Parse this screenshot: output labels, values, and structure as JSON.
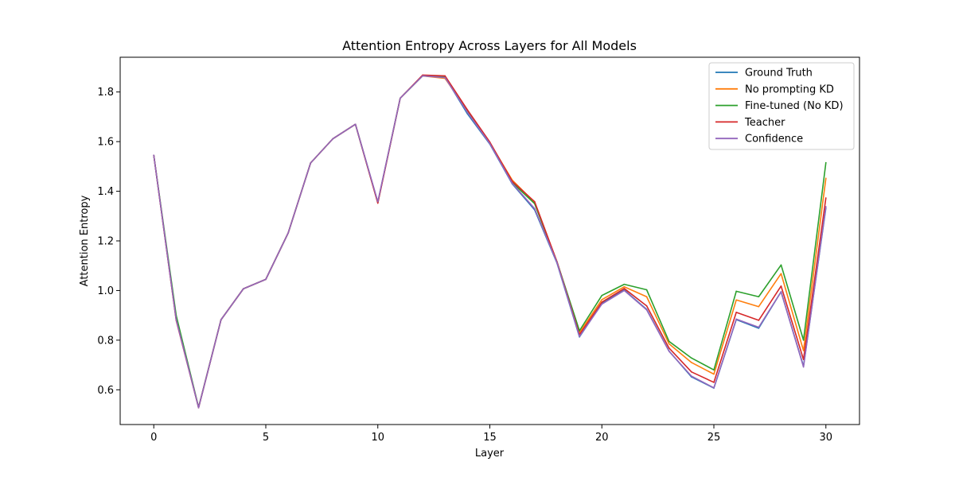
{
  "chart_data": {
    "type": "line",
    "title": "Attention Entropy Across Layers for All Models",
    "xlabel": "Layer",
    "ylabel": "Attention Entropy",
    "xlim": [
      -1.5,
      31.5
    ],
    "ylim": [
      0.46,
      1.94
    ],
    "xticks": [
      0,
      5,
      10,
      15,
      20,
      25,
      30
    ],
    "yticks": [
      0.6,
      0.8,
      1.0,
      1.2,
      1.4,
      1.6,
      1.8
    ],
    "ytick_labels": [
      "0.6",
      "0.8",
      "1.0",
      "1.2",
      "1.4",
      "1.6",
      "1.8"
    ],
    "grid": false,
    "legend_position": "top-right",
    "x": [
      0,
      1,
      2,
      3,
      4,
      5,
      6,
      7,
      8,
      9,
      10,
      11,
      12,
      13,
      14,
      15,
      16,
      17,
      18,
      19,
      20,
      21,
      22,
      23,
      24,
      25,
      26,
      27,
      28,
      29,
      30
    ],
    "series": [
      {
        "name": "Ground Truth",
        "color": "#1f77b4",
        "values": [
          1.545,
          0.885,
          0.528,
          0.882,
          1.007,
          1.045,
          1.232,
          1.514,
          1.612,
          1.67,
          1.355,
          1.775,
          1.865,
          1.86,
          1.712,
          1.59,
          1.43,
          1.325,
          1.11,
          0.813,
          0.948,
          1.002,
          0.924,
          0.756,
          0.652,
          0.607,
          0.883,
          0.848,
          0.995,
          0.695,
          1.333
        ]
      },
      {
        "name": "No prompting KD",
        "color": "#ff7f0e",
        "values": [
          1.545,
          0.885,
          0.528,
          0.882,
          1.007,
          1.045,
          1.232,
          1.514,
          1.612,
          1.67,
          1.355,
          1.775,
          1.865,
          1.855,
          1.725,
          1.595,
          1.445,
          1.355,
          1.115,
          0.83,
          0.963,
          1.015,
          0.975,
          0.785,
          0.71,
          0.663,
          0.962,
          0.935,
          1.068,
          0.758,
          1.452
        ]
      },
      {
        "name": "Fine-tuned (No KD)",
        "color": "#2ca02c",
        "values": [
          1.545,
          0.9,
          0.53,
          0.882,
          1.007,
          1.045,
          1.232,
          1.514,
          1.612,
          1.67,
          1.355,
          1.775,
          1.865,
          1.86,
          1.725,
          1.595,
          1.435,
          1.35,
          1.115,
          0.838,
          0.98,
          1.025,
          1.003,
          0.795,
          0.728,
          0.68,
          0.997,
          0.975,
          1.103,
          0.8,
          1.515
        ]
      },
      {
        "name": "Teacher",
        "color": "#d62728",
        "values": [
          1.545,
          0.88,
          0.528,
          0.882,
          1.007,
          1.045,
          1.232,
          1.514,
          1.612,
          1.67,
          1.352,
          1.775,
          1.868,
          1.865,
          1.728,
          1.598,
          1.44,
          1.358,
          1.115,
          0.822,
          0.953,
          1.008,
          0.938,
          0.768,
          0.672,
          0.63,
          0.912,
          0.88,
          1.018,
          0.722,
          1.373
        ]
      },
      {
        "name": "Confidence",
        "color": "#9467bd",
        "values": [
          1.545,
          0.883,
          0.528,
          0.882,
          1.007,
          1.045,
          1.232,
          1.514,
          1.612,
          1.67,
          1.358,
          1.775,
          1.865,
          1.858,
          1.718,
          1.592,
          1.432,
          1.33,
          1.112,
          0.815,
          0.945,
          1.0,
          0.922,
          0.755,
          0.655,
          0.608,
          0.885,
          0.852,
          0.995,
          0.692,
          1.338
        ]
      }
    ]
  }
}
